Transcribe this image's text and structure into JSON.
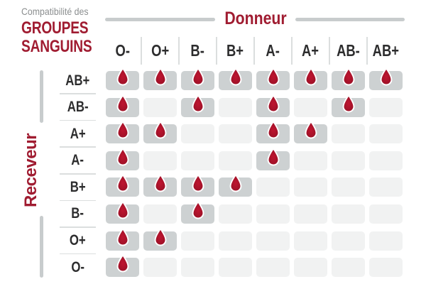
{
  "title": {
    "eyebrow": "Compatibilité des",
    "line1": "GROUPES",
    "line2": "SANGUINS"
  },
  "axes": {
    "donor": "Donneur",
    "receiver": "Receveur"
  },
  "icons": {
    "compatible_marker": "blood-drop-icon"
  },
  "colors": {
    "brand_red": "#a01c31",
    "drop_center": "#bf1530",
    "drop_edge": "#8c0e23",
    "filled_cell": "#cdd1d2",
    "empty_cell": "#f1f2f2",
    "divider_thick": "#c8cccd",
    "divider_thin": "#dbdede",
    "label_dark": "#2d2d2e",
    "eyebrow_gray": "#8b8e8f"
  },
  "chart_data": {
    "type": "table",
    "title": "Compatibilité des groupes sanguins",
    "x_axis_label": "Donneur",
    "y_axis_label": "Receveur",
    "donors": [
      "O-",
      "O+",
      "B-",
      "B+",
      "A-",
      "A+",
      "AB-",
      "AB+"
    ],
    "receivers": [
      "AB+",
      "AB-",
      "A+",
      "A-",
      "B+",
      "B-",
      "O+",
      "O-"
    ],
    "compatible_marker": "blood-drop",
    "matrix": [
      [
        1,
        1,
        1,
        1,
        1,
        1,
        1,
        1
      ],
      [
        1,
        0,
        1,
        0,
        1,
        0,
        1,
        0
      ],
      [
        1,
        1,
        0,
        0,
        1,
        1,
        0,
        0
      ],
      [
        1,
        0,
        0,
        0,
        1,
        0,
        0,
        0
      ],
      [
        1,
        1,
        1,
        1,
        0,
        0,
        0,
        0
      ],
      [
        1,
        0,
        1,
        0,
        0,
        0,
        0,
        0
      ],
      [
        1,
        1,
        0,
        0,
        0,
        0,
        0,
        0
      ],
      [
        1,
        0,
        0,
        0,
        0,
        0,
        0,
        0
      ]
    ]
  }
}
